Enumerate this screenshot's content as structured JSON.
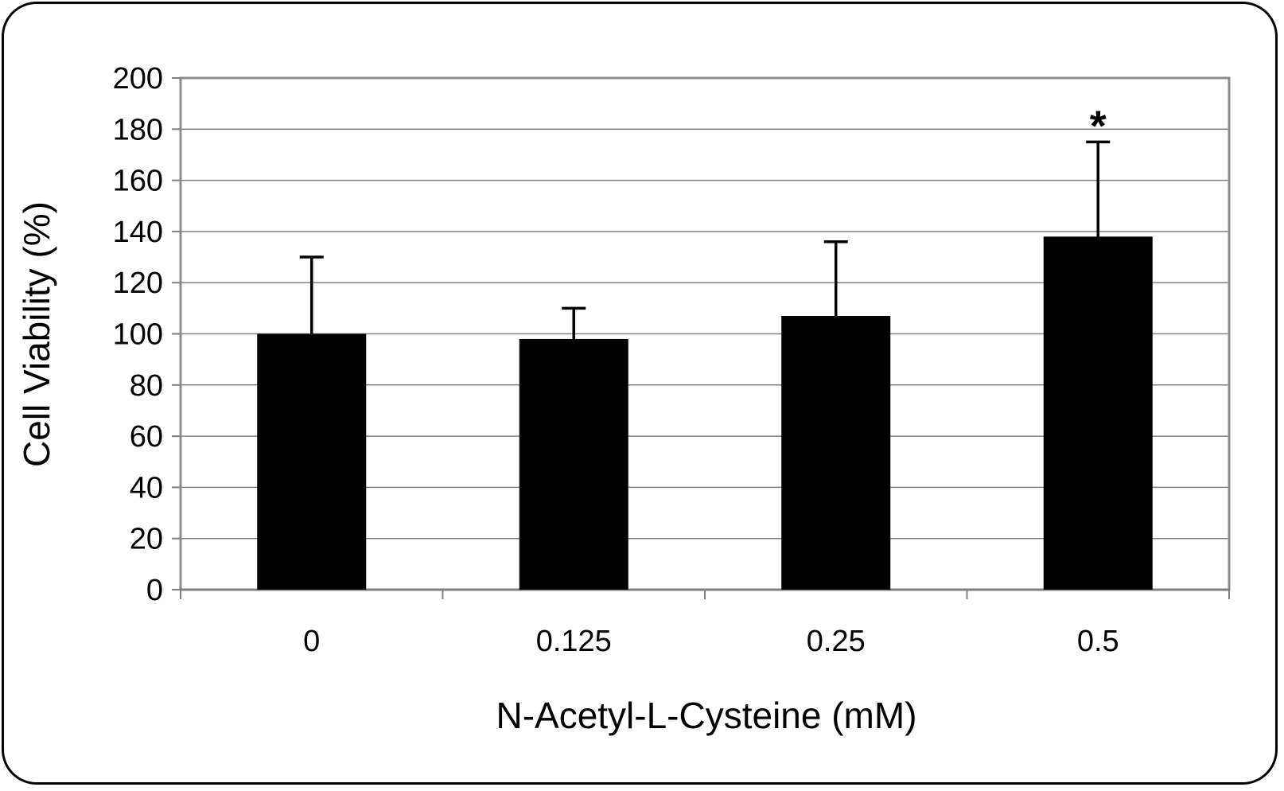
{
  "chart_data": {
    "type": "bar",
    "title": "",
    "xlabel": "N-Acetyl-L-Cysteine (mM)",
    "ylabel": "Cell Viability  (%)",
    "categories": [
      "0",
      "0.125",
      "0.25",
      "0.5"
    ],
    "values": [
      100,
      98,
      107,
      138
    ],
    "error_upper": [
      130,
      110,
      136,
      175
    ],
    "annotations": [
      "",
      "",
      "",
      "*"
    ],
    "ylim": [
      0,
      200
    ],
    "yticks": [
      0,
      20,
      40,
      60,
      80,
      100,
      120,
      140,
      160,
      180,
      200
    ],
    "ytick_labels": [
      "0",
      "20",
      "40",
      "60",
      "80",
      "100",
      "120",
      "140",
      "160",
      "180",
      "200"
    ],
    "grid": true,
    "legend": "none",
    "colors": {
      "bar": "#000000",
      "grid": "#808080",
      "axis": "#808080",
      "plot_border": "#8c8c8c"
    }
  }
}
